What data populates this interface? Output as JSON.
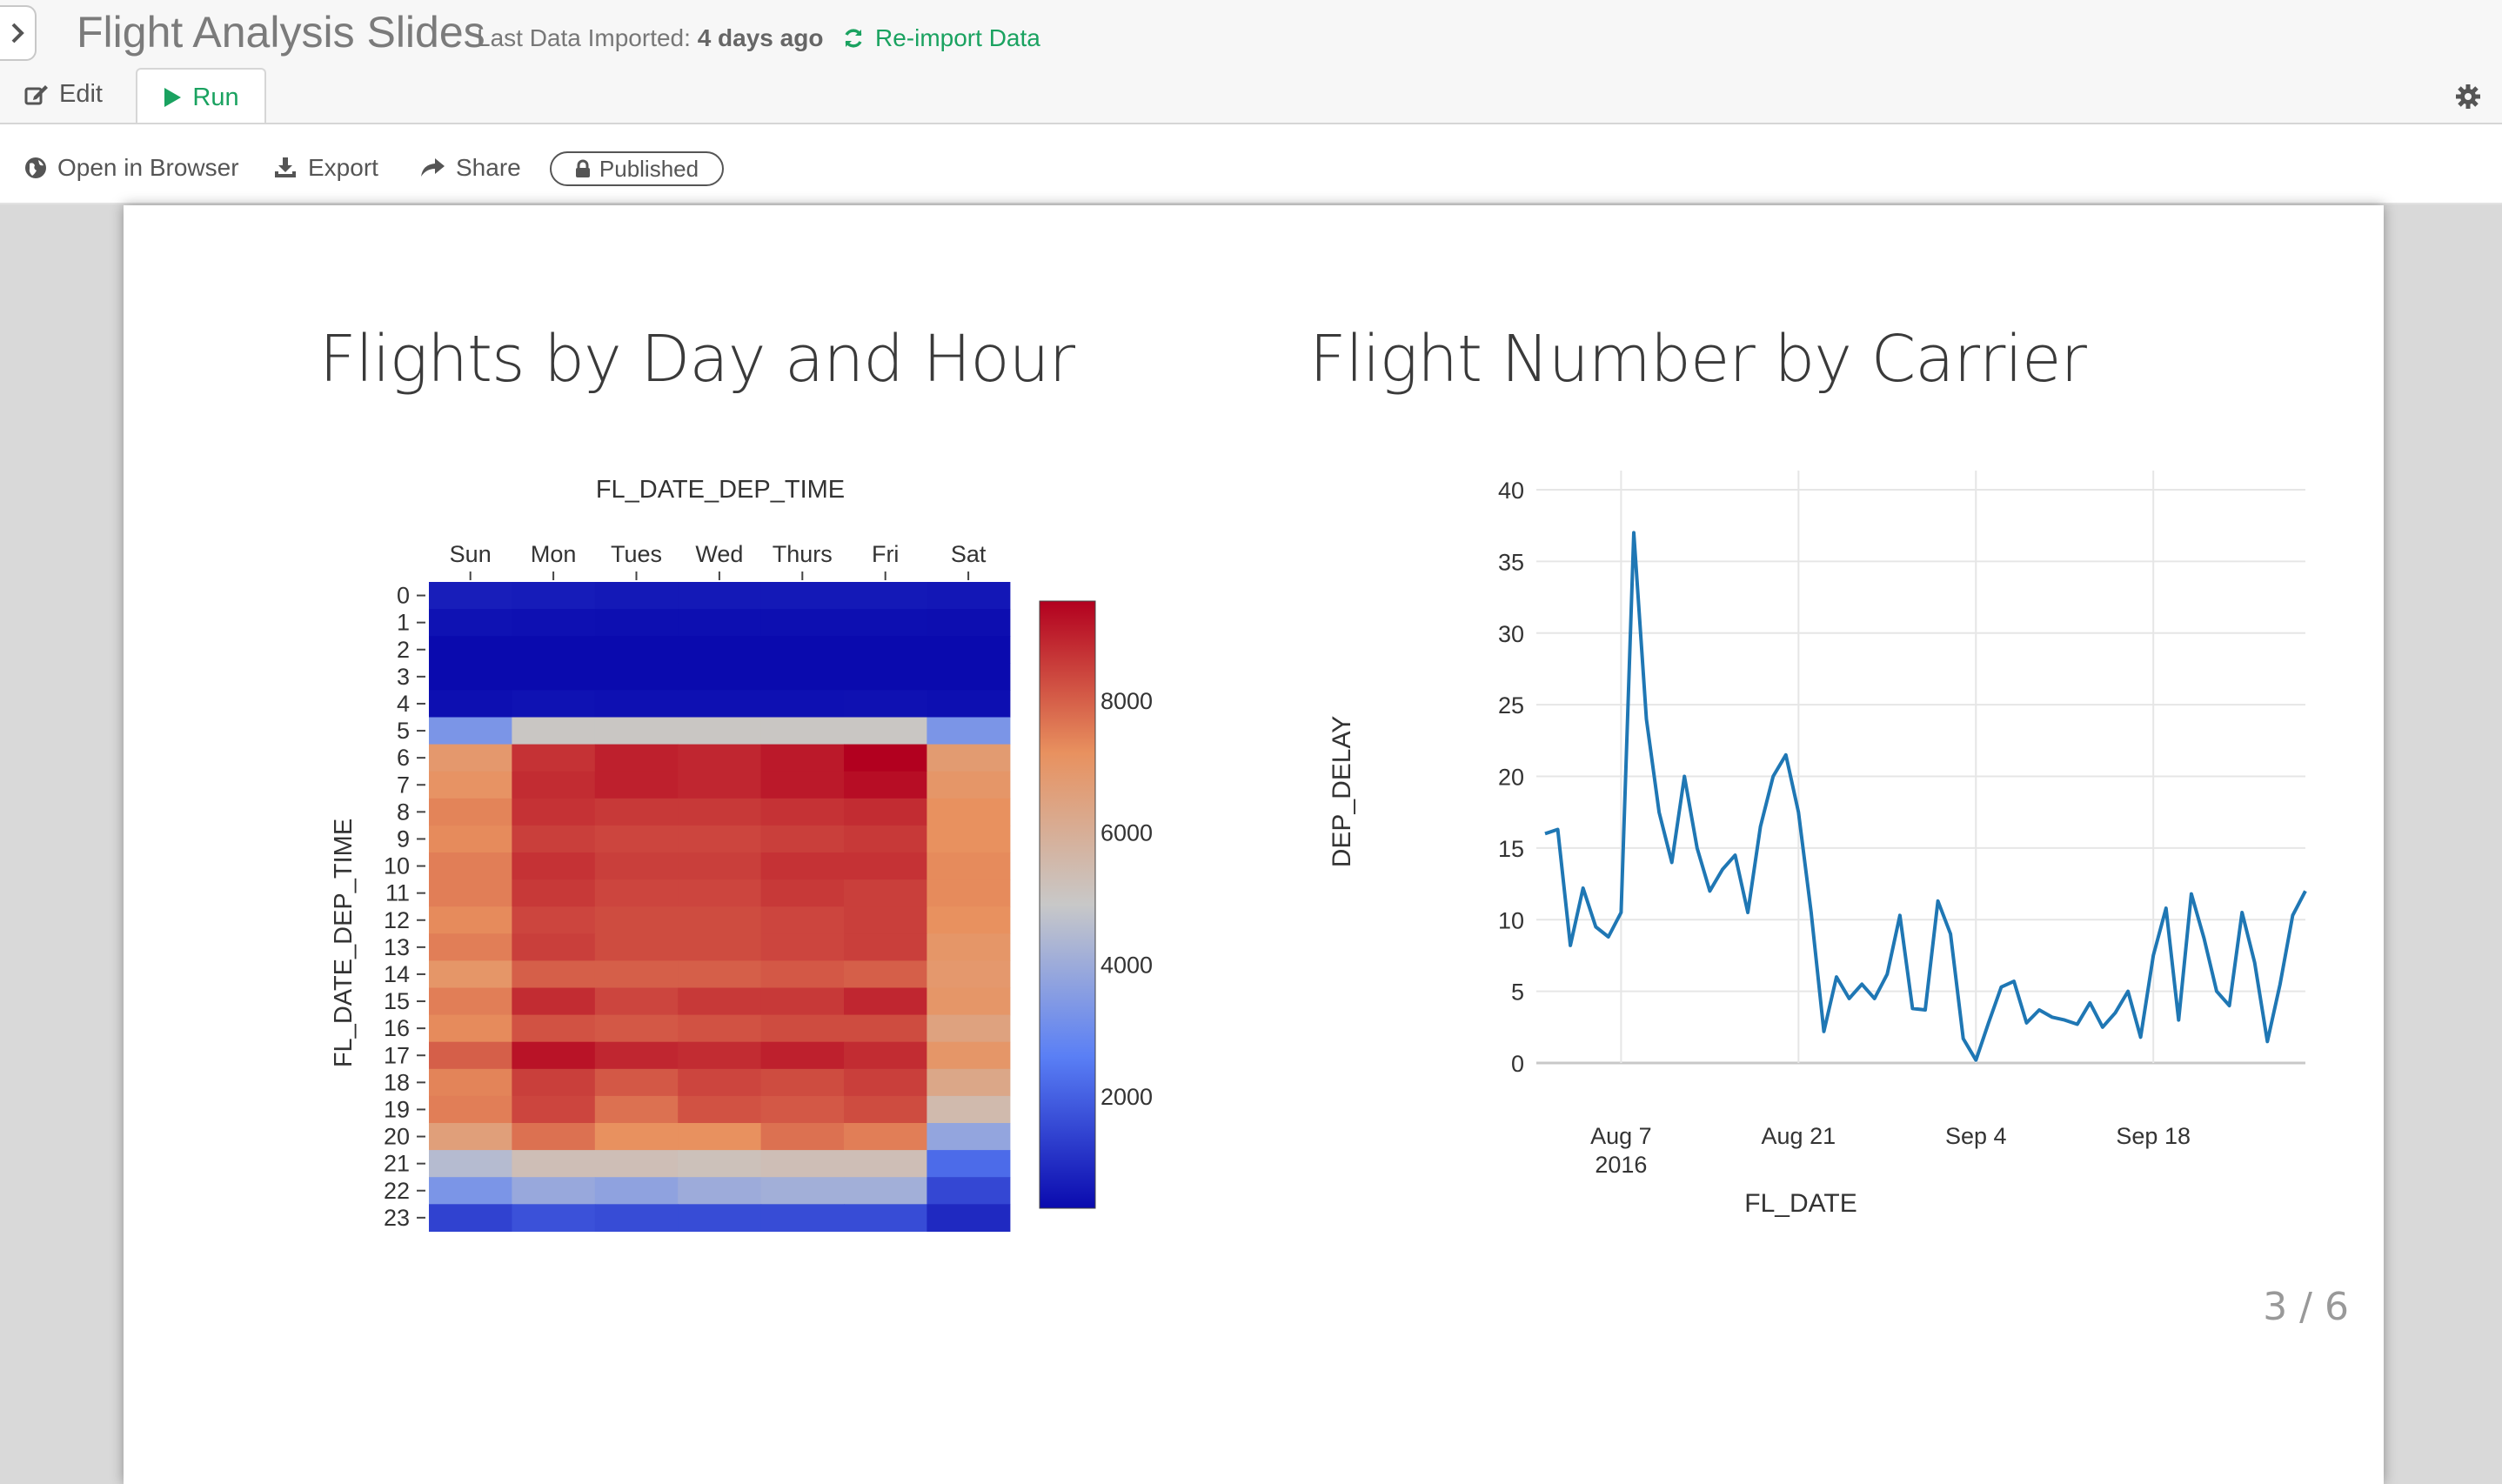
{
  "app": {
    "title": "Flight Analysis Slides",
    "import_label": "Last Data Imported: ",
    "import_age": "4 days ago",
    "reimport_label": "Re-import Data"
  },
  "tabs": [
    {
      "label": "Edit",
      "icon": "edit-icon",
      "active": false
    },
    {
      "label": "Run",
      "icon": "play-icon",
      "active": true
    }
  ],
  "toolbar": {
    "open_browser": "Open in Browser",
    "export": "Export",
    "share": "Share",
    "published": "Published"
  },
  "slide": {
    "page": "3 / 6",
    "left_title": "Flights by Day and Hour",
    "right_title": "Flight Number by Carrier"
  },
  "colors": {
    "accent": "#1aa260",
    "line": "#1f77b4",
    "scale": [
      "#0a0aae",
      "#5a7ff5",
      "#c8c8c8",
      "#e8915f",
      "#b2001f"
    ]
  },
  "chart_data": [
    {
      "type": "heatmap",
      "title": "",
      "xlabel": "FL_DATE_DEP_TIME",
      "ylabel": "FL_DATE_DEP_TIME",
      "x": [
        "Sun",
        "Mon",
        "Tues",
        "Wed",
        "Thurs",
        "Fri",
        "Sat"
      ],
      "y": [
        "0",
        "1",
        "2",
        "3",
        "4",
        "5",
        "6",
        "7",
        "8",
        "9",
        "10",
        "11",
        "12",
        "13",
        "14",
        "15",
        "16",
        "17",
        "18",
        "19",
        "20",
        "21",
        "22",
        "23"
      ],
      "colorbar_ticks": [
        2000,
        4000,
        6000,
        8000
      ],
      "zmin": 300,
      "zmax": 9500,
      "z": [
        [
          700,
          650,
          600,
          600,
          600,
          600,
          550
        ],
        [
          450,
          420,
          400,
          400,
          400,
          400,
          380
        ],
        [
          300,
          300,
          300,
          300,
          300,
          300,
          300
        ],
        [
          300,
          300,
          300,
          300,
          300,
          300,
          300
        ],
        [
          400,
          450,
          420,
          420,
          420,
          430,
          400
        ],
        [
          3300,
          5000,
          5000,
          5000,
          5000,
          5000,
          3300
        ],
        [
          6900,
          8700,
          9000,
          8900,
          9100,
          9500,
          6800
        ],
        [
          7100,
          8800,
          9000,
          8900,
          9100,
          9300,
          7000
        ],
        [
          7400,
          8700,
          8600,
          8600,
          8700,
          8800,
          7200
        ],
        [
          7300,
          8500,
          8400,
          8400,
          8500,
          8600,
          7200
        ],
        [
          7500,
          8700,
          8500,
          8500,
          8700,
          8700,
          7300
        ],
        [
          7500,
          8600,
          8400,
          8400,
          8600,
          8500,
          7300
        ],
        [
          7300,
          8400,
          8300,
          8300,
          8400,
          8500,
          7200
        ],
        [
          7500,
          8500,
          8300,
          8300,
          8400,
          8500,
          7000
        ],
        [
          7000,
          8000,
          8000,
          8000,
          8100,
          8000,
          6900
        ],
        [
          7500,
          8800,
          8400,
          8600,
          8600,
          8900,
          7000
        ],
        [
          7300,
          8200,
          8100,
          8200,
          8300,
          8300,
          6500
        ],
        [
          8000,
          9200,
          8900,
          8800,
          9000,
          8800,
          7000
        ],
        [
          7400,
          8500,
          8100,
          8400,
          8300,
          8500,
          6300
        ],
        [
          7500,
          8400,
          7700,
          8200,
          8100,
          8300,
          5500
        ],
        [
          6600,
          7700,
          7200,
          7200,
          7700,
          7500,
          3800
        ],
        [
          4500,
          5300,
          5300,
          5200,
          5300,
          5300,
          2200
        ],
        [
          3300,
          3900,
          3700,
          4000,
          4100,
          4100,
          1500
        ],
        [
          1400,
          1700,
          1600,
          1600,
          1600,
          1600,
          900
        ]
      ]
    },
    {
      "type": "line",
      "title": "",
      "xlabel": "FL_DATE",
      "ylabel": "DEP_DELAY",
      "x_ticks": [
        "Aug 7\n2016",
        "Aug 21",
        "Sep 4",
        "Sep 18"
      ],
      "xlim": [
        "2016-08-01",
        "2016-09-30"
      ],
      "ylim": [
        0,
        40
      ],
      "y_ticks": [
        0,
        5,
        10,
        15,
        20,
        25,
        30,
        35,
        40
      ],
      "x": [
        "2016-08-01",
        "2016-08-02",
        "2016-08-03",
        "2016-08-04",
        "2016-08-05",
        "2016-08-06",
        "2016-08-07",
        "2016-08-08",
        "2016-08-09",
        "2016-08-10",
        "2016-08-11",
        "2016-08-12",
        "2016-08-13",
        "2016-08-14",
        "2016-08-15",
        "2016-08-16",
        "2016-08-17",
        "2016-08-18",
        "2016-08-19",
        "2016-08-20",
        "2016-08-21",
        "2016-08-22",
        "2016-08-23",
        "2016-08-24",
        "2016-08-25",
        "2016-08-26",
        "2016-08-27",
        "2016-08-28",
        "2016-08-29",
        "2016-08-30",
        "2016-08-31",
        "2016-09-01",
        "2016-09-02",
        "2016-09-03",
        "2016-09-04",
        "2016-09-05",
        "2016-09-06",
        "2016-09-07",
        "2016-09-08",
        "2016-09-09",
        "2016-09-10",
        "2016-09-11",
        "2016-09-12",
        "2016-09-13",
        "2016-09-14",
        "2016-09-15",
        "2016-09-16",
        "2016-09-17",
        "2016-09-18",
        "2016-09-19",
        "2016-09-20",
        "2016-09-21",
        "2016-09-22",
        "2016-09-23",
        "2016-09-24",
        "2016-09-25",
        "2016-09-26",
        "2016-09-27",
        "2016-09-28",
        "2016-09-29",
        "2016-09-30"
      ],
      "y": [
        16,
        16.3,
        8.2,
        12.2,
        9.5,
        8.8,
        10.5,
        37,
        24,
        17.5,
        14,
        20,
        15,
        12,
        13.5,
        14.5,
        10.5,
        16.5,
        20,
        21.5,
        17.5,
        10.5,
        2.2,
        6,
        4.5,
        5.5,
        4.5,
        6.2,
        10.3,
        3.8,
        3.7,
        11.3,
        9,
        1.7,
        0.2,
        2.8,
        5.3,
        5.7,
        2.8,
        3.7,
        3.2,
        3,
        2.7,
        4.2,
        2.5,
        3.5,
        5,
        1.8,
        7.5,
        10.8,
        3,
        11.8,
        8.7,
        5,
        4,
        10.5,
        7,
        1.5,
        5.5,
        10.3,
        12
      ]
    }
  ]
}
